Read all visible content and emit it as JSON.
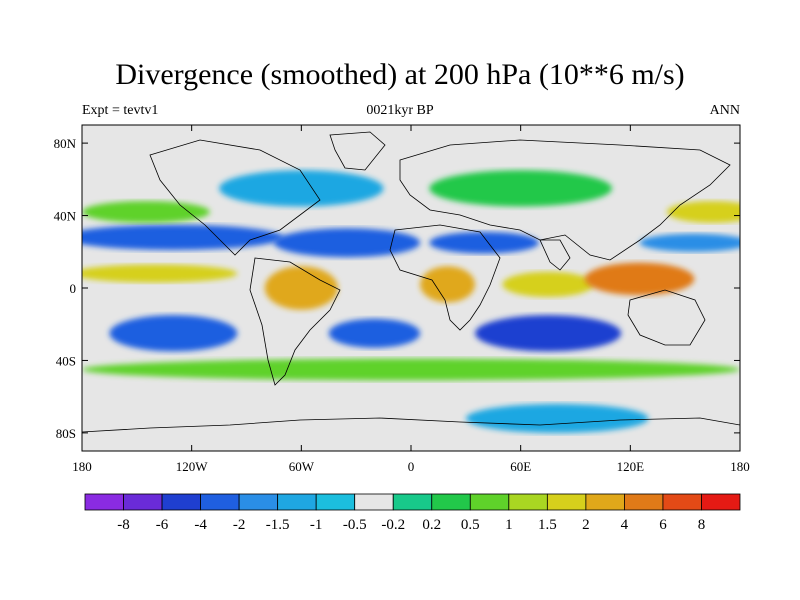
{
  "header": {
    "title": "Divergence (smoothed) at 200 hPa (10**6 m/s)",
    "left_label": "Expt = tevtv1",
    "center_label": "0021kyr BP",
    "right_label": "ANN"
  },
  "chart_data": {
    "type": "heatmap",
    "title": "Divergence (smoothed) at 200 hPa (10**6 m/s)",
    "projection": "cylindrical-equidistant",
    "xlim": [
      -180,
      180
    ],
    "ylim": [
      -90,
      90
    ],
    "x_ticks": [
      {
        "value": -180,
        "label": "180"
      },
      {
        "value": -120,
        "label": "120W"
      },
      {
        "value": -60,
        "label": "60W"
      },
      {
        "value": 0,
        "label": "0"
      },
      {
        "value": 60,
        "label": "60E"
      },
      {
        "value": 120,
        "label": "120E"
      },
      {
        "value": 180,
        "label": "180"
      }
    ],
    "y_ticks": [
      {
        "value": 80,
        "label": "80N"
      },
      {
        "value": 40,
        "label": "40N"
      },
      {
        "value": 0,
        "label": "0"
      },
      {
        "value": -40,
        "label": "40S"
      },
      {
        "value": -80,
        "label": "80S"
      }
    ],
    "colorbar": {
      "colors": [
        "#8a2be2",
        "#6a2bd8",
        "#1f3fd0",
        "#1f5fe0",
        "#2a8ee6",
        "#1fa7e2",
        "#1cbede",
        "#e6e6e6",
        "#18c98a",
        "#22c84a",
        "#5fd22a",
        "#a9d622",
        "#d6d01c",
        "#e0a81a",
        "#e07a18",
        "#e34a16",
        "#e51a14"
      ],
      "labels": [
        "-8",
        "-6",
        "-4",
        "-2",
        "-1.5",
        "-1",
        "-0.5",
        "-0.2",
        "0.2",
        "0.5",
        "1",
        "1.5",
        "2",
        "4",
        "6",
        "8"
      ]
    },
    "fields": [
      {
        "name": "band-north-pacific-neg",
        "lon": -130,
        "lat": 28,
        "rlon": 60,
        "rlat": 7,
        "value": -2.5
      },
      {
        "name": "band-atlantic-neg",
        "lon": -35,
        "lat": 25,
        "rlon": 40,
        "rlat": 8,
        "value": -3
      },
      {
        "name": "band-africa-neg",
        "lon": 40,
        "lat": 25,
        "rlon": 30,
        "rlat": 6,
        "value": -2
      },
      {
        "name": "band-west-pacific-neg",
        "lon": 155,
        "lat": 25,
        "rlon": 30,
        "rlat": 5,
        "value": -1.5
      },
      {
        "name": "north-pacific-pos",
        "lon": -145,
        "lat": 42,
        "rlon": 35,
        "rlat": 6,
        "value": 1
      },
      {
        "name": "northwest-pacific-pos",
        "lon": 165,
        "lat": 42,
        "rlon": 25,
        "rlat": 6,
        "value": 2
      },
      {
        "name": "north-atlantic-neg",
        "lon": -60,
        "lat": 55,
        "rlon": 45,
        "rlat": 10,
        "value": -1
      },
      {
        "name": "eurasia-pos",
        "lon": 60,
        "lat": 55,
        "rlon": 50,
        "rlat": 10,
        "value": 0.5
      },
      {
        "name": "itcz-pacific-pos",
        "lon": -140,
        "lat": 8,
        "rlon": 45,
        "rlat": 5,
        "value": 2
      },
      {
        "name": "south-america-pos",
        "lon": -60,
        "lat": 0,
        "rlon": 20,
        "rlat": 12,
        "value": 3
      },
      {
        "name": "africa-pos",
        "lon": 20,
        "lat": 2,
        "rlon": 15,
        "rlat": 10,
        "value": 4
      },
      {
        "name": "indian-ocean-pos",
        "lon": 75,
        "lat": 2,
        "rlon": 25,
        "rlat": 7,
        "value": 2
      },
      {
        "name": "maritime-continent-pos",
        "lon": 125,
        "lat": 5,
        "rlon": 30,
        "rlat": 9,
        "value": 5
      },
      {
        "name": "south-pacific-neg",
        "lon": -130,
        "lat": -25,
        "rlon": 35,
        "rlat": 10,
        "value": -3.5
      },
      {
        "name": "south-atlantic-neg",
        "lon": -20,
        "lat": -25,
        "rlon": 25,
        "rlat": 8,
        "value": -3
      },
      {
        "name": "south-indian-neg",
        "lon": 75,
        "lat": -25,
        "rlon": 40,
        "rlat": 10,
        "value": -4
      },
      {
        "name": "southern-ocean-pos",
        "lon": 0,
        "lat": -45,
        "rlon": 180,
        "rlat": 6,
        "value": 0.6
      },
      {
        "name": "antarctic-neg",
        "lon": 80,
        "lat": -72,
        "rlon": 50,
        "rlat": 8,
        "value": -1
      }
    ]
  }
}
